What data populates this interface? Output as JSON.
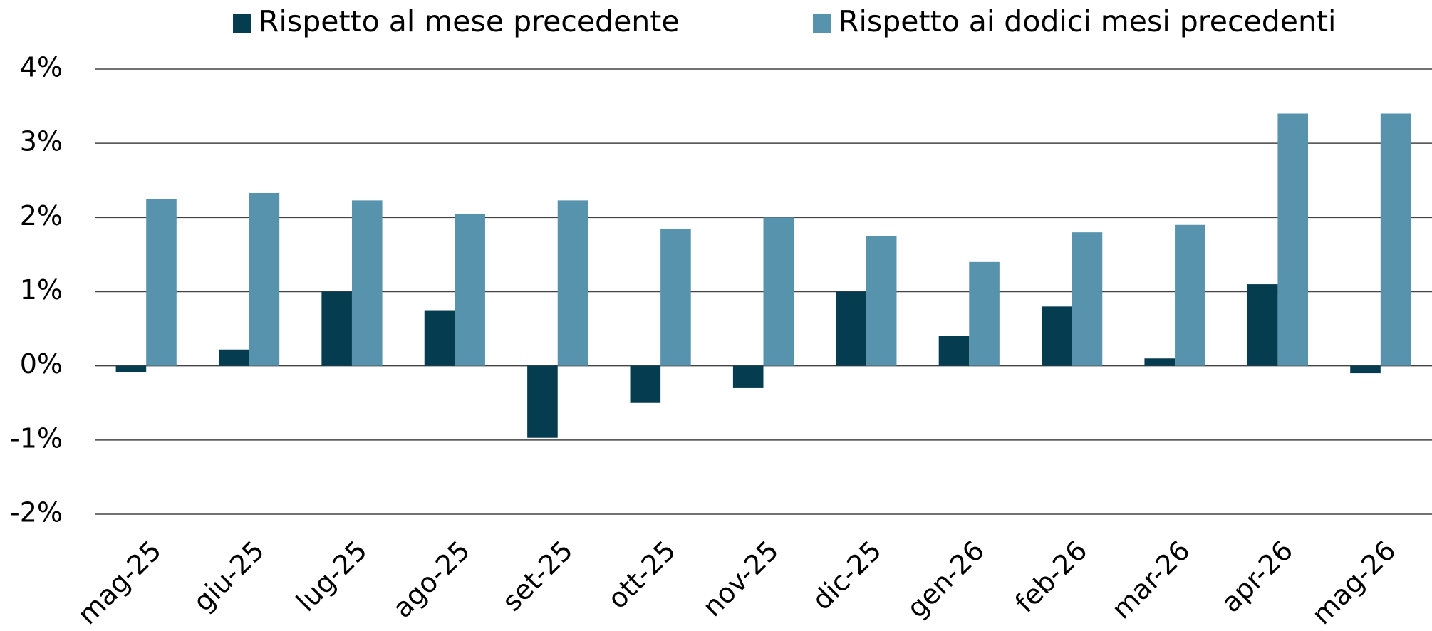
{
  "chart_data": {
    "type": "bar",
    "categories": [
      "mag-25",
      "giu-25",
      "lug-25",
      "ago-25",
      "set-25",
      "ott-25",
      "nov-25",
      "dic-25",
      "gen-26",
      "feb-26",
      "mar-26",
      "apr-26",
      "mag-26"
    ],
    "series": [
      {
        "name": "Rispetto al mese precedente",
        "color": "#053c50",
        "values": [
          -0.08,
          0.22,
          1.0,
          0.75,
          -0.97,
          -0.5,
          -0.3,
          1.0,
          0.4,
          0.8,
          0.1,
          1.1,
          -0.1
        ]
      },
      {
        "name": "Rispetto ai dodici mesi precedenti",
        "color": "#5793ad",
        "values": [
          2.25,
          2.33,
          2.23,
          2.05,
          2.23,
          1.85,
          2.0,
          1.75,
          1.4,
          1.8,
          1.9,
          3.4,
          3.4
        ]
      }
    ],
    "ylim": [
      -2,
      4
    ],
    "yticks": [
      {
        "value": -2,
        "label": "-2%"
      },
      {
        "value": -1,
        "label": "-1%"
      },
      {
        "value": 0,
        "label": "0%"
      },
      {
        "value": 1,
        "label": "1%"
      },
      {
        "value": 2,
        "label": "2%"
      },
      {
        "value": 3,
        "label": "3%"
      },
      {
        "value": 4,
        "label": "4%"
      }
    ],
    "grid": true,
    "legend": "top"
  }
}
